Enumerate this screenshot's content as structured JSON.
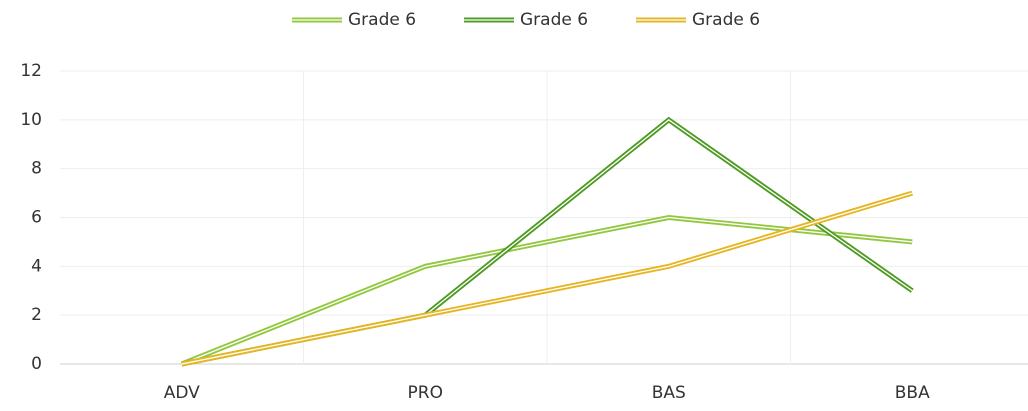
{
  "chart_data": {
    "type": "line",
    "categories": [
      "ADV",
      "PRO",
      "BAS",
      "BBA"
    ],
    "series": [
      {
        "name": "Grade 6",
        "color": "#92c83e",
        "values": [
          0,
          4,
          6,
          5
        ]
      },
      {
        "name": "Grade 6",
        "color": "#4e9a22",
        "values": [
          0,
          2,
          10,
          3
        ]
      },
      {
        "name": "Grade 6",
        "color": "#e6b522",
        "values": [
          0,
          2,
          4,
          7
        ]
      }
    ],
    "ylim": [
      0,
      12
    ],
    "yticks": [
      0,
      2,
      4,
      6,
      8,
      10,
      12
    ],
    "grid": true,
    "legend": "top"
  }
}
